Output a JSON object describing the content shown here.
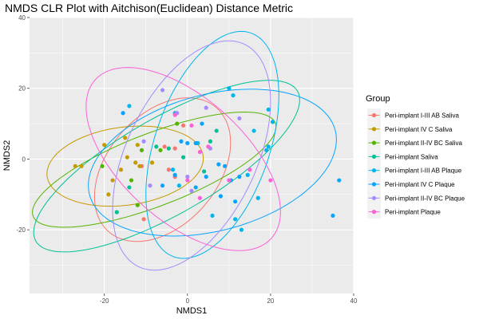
{
  "chart_data": {
    "type": "scatter",
    "title": "NMDS CLR Plot with Aitchison(Euclidean) Distance Metric",
    "xlabel": "NMDS1",
    "ylabel": "NMDS2",
    "xlim": [
      -38,
      40
    ],
    "ylim": [
      -38,
      40
    ],
    "xticks": [
      -20,
      0,
      20,
      40
    ],
    "yticks": [
      -20,
      0,
      20,
      40
    ],
    "grid": true,
    "legend": {
      "title": "Group",
      "placement": "right"
    },
    "series": [
      {
        "name": "Peri-implant I-III AB Saliva",
        "color": "#F8766D",
        "points": [
          [
            -10.5,
            -17
          ],
          [
            -4.5,
            -3
          ],
          [
            -3,
            -5
          ],
          [
            -5.5,
            3.5
          ],
          [
            -1,
            9.5
          ],
          [
            -11,
            -2
          ],
          [
            -3,
            3
          ]
        ],
        "ellipse": {
          "cx": -6,
          "cy": -3,
          "rx": 22,
          "ry": 14,
          "angle": 60
        }
      },
      {
        "name": "Peri-implant IV C Saliva",
        "color": "#C49A00",
        "points": [
          [
            -27,
            -2
          ],
          [
            -25.5,
            -2
          ],
          [
            -20,
            4
          ],
          [
            -19,
            -10
          ],
          [
            -16,
            -3
          ],
          [
            -14.5,
            0.5
          ],
          [
            -15,
            6
          ],
          [
            -12.5,
            -1
          ],
          [
            -11.5,
            -2
          ],
          [
            -8.5,
            -1
          ],
          [
            -18,
            -6
          ],
          [
            -12,
            4
          ]
        ],
        "ellipse": {
          "cx": -15,
          "cy": -2,
          "rx": 19,
          "ry": 11,
          "angle": 10
        }
      },
      {
        "name": "Peri-implant II-IV BC Saliva",
        "color": "#53B400",
        "points": [
          [
            -20.5,
            -2
          ],
          [
            -13.5,
            -6
          ],
          [
            -12,
            -13
          ],
          [
            -11,
            2.5
          ],
          [
            -6.5,
            2.5
          ],
          [
            -2.5,
            10
          ]
        ],
        "ellipse": {
          "cx": -8,
          "cy": -3,
          "rx": 32,
          "ry": 10,
          "angle": 25
        }
      },
      {
        "name": "Peri-implant Saliva",
        "color": "#00C094",
        "points": [
          [
            -17,
            -15
          ],
          [
            -14,
            -8
          ],
          [
            -7.5,
            3.5
          ],
          [
            -4.5,
            3
          ],
          [
            -1,
            0.5
          ],
          [
            4,
            -3.5
          ],
          [
            5.5,
            5
          ],
          [
            7,
            8
          ]
        ],
        "ellipse": {
          "cx": -5,
          "cy": -2,
          "rx": 38,
          "ry": 13,
          "angle": 35
        }
      },
      {
        "name": "Peri-implant I-III AB Plaque",
        "color": "#00B6EB",
        "points": [
          [
            -14,
            15
          ],
          [
            -3,
            13
          ],
          [
            -3.5,
            -3
          ],
          [
            -2,
            -7.5
          ],
          [
            2.5,
            4.5
          ],
          [
            6,
            -16
          ],
          [
            10,
            20
          ],
          [
            11,
            18
          ],
          [
            11.5,
            -17
          ],
          [
            13,
            -20
          ],
          [
            14.5,
            -4.5
          ],
          [
            16,
            8
          ],
          [
            17,
            -11
          ],
          [
            19.5,
            14
          ],
          [
            19.5,
            3.5
          ],
          [
            19,
            2.5
          ],
          [
            20.5,
            10.5
          ]
        ],
        "ellipse": {
          "cx": 6,
          "cy": 4,
          "rx": 33,
          "ry": 14,
          "angle": 75
        }
      },
      {
        "name": "Peri-implant IV C Plaque",
        "color": "#06A4FF",
        "points": [
          [
            -15.5,
            13
          ],
          [
            -3,
            -4.5
          ],
          [
            -1.5,
            5
          ],
          [
            0,
            4.5
          ],
          [
            2,
            4.5
          ],
          [
            3.5,
            10
          ],
          [
            4.5,
            -5
          ],
          [
            8,
            -10.5
          ],
          [
            9,
            -2
          ],
          [
            10.5,
            -6
          ],
          [
            11.5,
            -12
          ],
          [
            12.5,
            -5
          ],
          [
            35,
            -16
          ],
          [
            36.5,
            -6
          ],
          [
            -6,
            -7.5
          ],
          [
            2,
            -8
          ],
          [
            7.5,
            -1.5
          ]
        ],
        "ellipse": {
          "cx": 6,
          "cy": -1,
          "rx": 31,
          "ry": 19,
          "angle": 20
        }
      },
      {
        "name": "Peri-implant II-IV BC Plaque",
        "color": "#A58AFF",
        "points": [
          [
            -10.5,
            5
          ],
          [
            -6,
            19.5
          ],
          [
            -2.5,
            13
          ],
          [
            0,
            -5
          ],
          [
            1,
            -9
          ],
          [
            4.5,
            14.5
          ],
          [
            5.5,
            3
          ],
          [
            12.5,
            11.5
          ],
          [
            -9,
            -7.5
          ]
        ],
        "ellipse": {
          "cx": 1,
          "cy": 1,
          "rx": 34,
          "ry": 16,
          "angle": 70
        }
      },
      {
        "name": "Peri-implant Plaque",
        "color": "#FB61D7",
        "points": [
          [
            -3,
            12.5
          ],
          [
            1,
            9.5
          ],
          [
            3,
            2
          ],
          [
            5,
            3.5
          ],
          [
            0,
            -6
          ],
          [
            3,
            -11
          ],
          [
            10,
            -6
          ],
          [
            15,
            -3
          ],
          [
            20,
            -6
          ]
        ],
        "ellipse": {
          "cx": -1,
          "cy": 0,
          "rx": 31,
          "ry": 16,
          "angle": 130
        }
      }
    ]
  }
}
